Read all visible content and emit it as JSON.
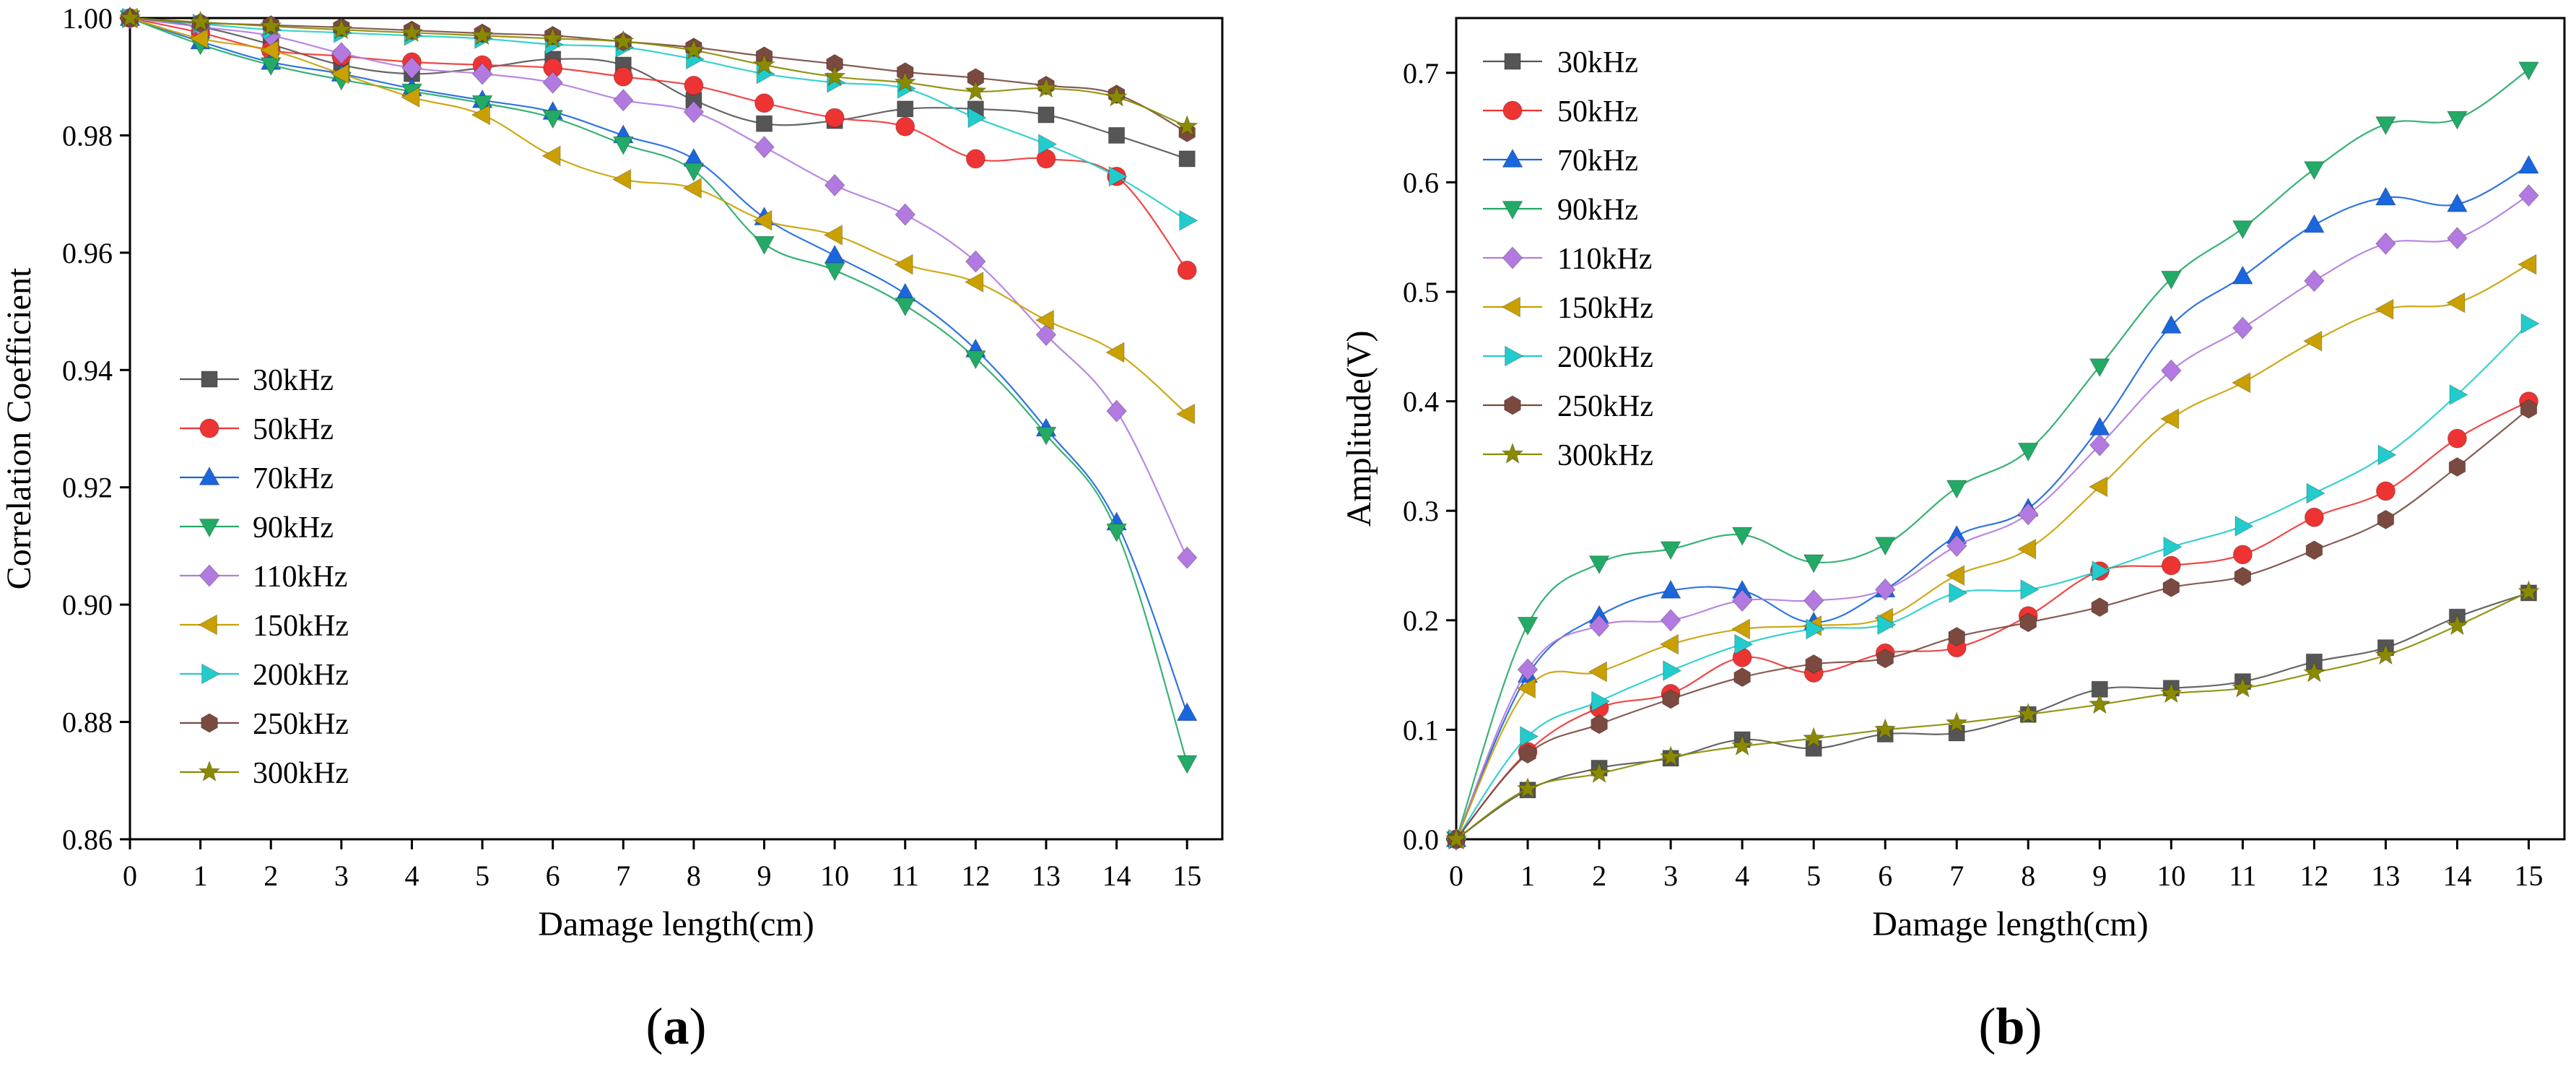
{
  "chart_data": [
    {
      "type": "line",
      "panel": "a",
      "panel_label": "a",
      "title": "",
      "xlabel": "Damage length(cm)",
      "ylabel": "Correlation Coefficient",
      "xlim": [
        0,
        15.5
      ],
      "ylim": [
        0.86,
        1.0
      ],
      "xticks": [
        0,
        1,
        2,
        3,
        4,
        5,
        6,
        7,
        8,
        9,
        10,
        11,
        12,
        13,
        14,
        15
      ],
      "yticks": [
        0.86,
        0.88,
        0.9,
        0.92,
        0.94,
        0.96,
        0.98,
        1.0
      ],
      "ytick_labels": [
        "0.86",
        "0.88",
        "0.90",
        "0.92",
        "0.94",
        "0.96",
        "0.98",
        "1.00"
      ],
      "grid": false,
      "legend_position": "center-left",
      "x": [
        0,
        1,
        2,
        3,
        4,
        5,
        6,
        7,
        8,
        9,
        10,
        11,
        12,
        13,
        14,
        15
      ],
      "series": [
        {
          "name": "30kHz",
          "color": "#555555",
          "marker": "square",
          "values": [
            1.0,
            0.9985,
            0.9955,
            0.992,
            0.9905,
            0.9915,
            0.993,
            0.992,
            0.986,
            0.982,
            0.9825,
            0.9845,
            0.9845,
            0.9835,
            0.98,
            0.976
          ]
        },
        {
          "name": "50kHz",
          "color": "#ee3333",
          "marker": "circle",
          "values": [
            1.0,
            0.9975,
            0.9945,
            0.9935,
            0.9925,
            0.992,
            0.9915,
            0.99,
            0.9885,
            0.9855,
            0.983,
            0.9815,
            0.976,
            0.976,
            0.973,
            0.957
          ]
        },
        {
          "name": "70kHz",
          "color": "#1a66dd",
          "marker": "triangle-up",
          "values": [
            1.0,
            0.996,
            0.9925,
            0.9905,
            0.988,
            0.986,
            0.984,
            0.98,
            0.976,
            0.966,
            0.9595,
            0.953,
            0.9435,
            0.93,
            0.914,
            0.8815
          ]
        },
        {
          "name": "90kHz",
          "color": "#22aa66",
          "marker": "triangle-down",
          "values": [
            1.0,
            0.9955,
            0.992,
            0.9895,
            0.9875,
            0.9855,
            0.983,
            0.9785,
            0.974,
            0.9615,
            0.957,
            0.951,
            0.942,
            0.929,
            0.9125,
            0.873
          ]
        },
        {
          "name": "110kHz",
          "color": "#b27ae0",
          "marker": "diamond",
          "values": [
            1.0,
            0.9985,
            0.997,
            0.994,
            0.9915,
            0.9905,
            0.989,
            0.986,
            0.984,
            0.978,
            0.9715,
            0.9665,
            0.9585,
            0.946,
            0.933,
            0.908
          ]
        },
        {
          "name": "150kHz",
          "color": "#c9a000",
          "marker": "triangle-left",
          "values": [
            1.0,
            0.9965,
            0.9945,
            0.9905,
            0.9865,
            0.9835,
            0.9765,
            0.9725,
            0.971,
            0.9655,
            0.963,
            0.958,
            0.955,
            0.9485,
            0.943,
            0.9325
          ]
        },
        {
          "name": "200kHz",
          "color": "#22cccc",
          "marker": "triangle-right",
          "values": [
            1.0,
            0.999,
            0.998,
            0.9975,
            0.997,
            0.9965,
            0.9955,
            0.995,
            0.993,
            0.9905,
            0.989,
            0.988,
            0.983,
            0.9785,
            0.973,
            0.9655
          ]
        },
        {
          "name": "250kHz",
          "color": "#7a4a40",
          "marker": "hexagon",
          "values": [
            1.0,
            0.9992,
            0.9988,
            0.9984,
            0.9979,
            0.9974,
            0.997,
            0.996,
            0.995,
            0.9935,
            0.9922,
            0.9908,
            0.9898,
            0.9885,
            0.987,
            0.9805
          ]
        },
        {
          "name": "300kHz",
          "color": "#8a8a00",
          "marker": "star",
          "values": [
            1.0,
            0.9993,
            0.9986,
            0.998,
            0.9975,
            0.997,
            0.9965,
            0.996,
            0.9945,
            0.992,
            0.99,
            0.989,
            0.9875,
            0.988,
            0.9865,
            0.9815
          ]
        }
      ]
    },
    {
      "type": "line",
      "panel": "b",
      "panel_label": "b",
      "title": "",
      "xlabel": "Damage length(cm)",
      "ylabel": "Amplitude(V)",
      "xlim": [
        0,
        15.5
      ],
      "ylim": [
        0.0,
        0.75
      ],
      "xticks": [
        0,
        1,
        2,
        3,
        4,
        5,
        6,
        7,
        8,
        9,
        10,
        11,
        12,
        13,
        14,
        15
      ],
      "yticks": [
        0.0,
        0.1,
        0.2,
        0.3,
        0.4,
        0.5,
        0.6,
        0.7
      ],
      "ytick_labels": [
        "0.0",
        "0.1",
        "0.2",
        "0.3",
        "0.4",
        "0.5",
        "0.6",
        "0.7"
      ],
      "grid": false,
      "legend_position": "top-left",
      "x": [
        0,
        1,
        2,
        3,
        4,
        5,
        6,
        7,
        8,
        9,
        10,
        11,
        12,
        13,
        14,
        15
      ],
      "series": [
        {
          "name": "30kHz",
          "color": "#555555",
          "marker": "square",
          "values": [
            0.0,
            0.045,
            0.065,
            0.074,
            0.091,
            0.083,
            0.096,
            0.097,
            0.114,
            0.137,
            0.138,
            0.144,
            0.162,
            0.175,
            0.203,
            0.225
          ]
        },
        {
          "name": "50kHz",
          "color": "#ee3333",
          "marker": "circle",
          "values": [
            0.0,
            0.08,
            0.12,
            0.133,
            0.166,
            0.152,
            0.17,
            0.175,
            0.204,
            0.245,
            0.25,
            0.26,
            0.294,
            0.318,
            0.366,
            0.4
          ]
        },
        {
          "name": "70kHz",
          "color": "#1a66dd",
          "marker": "triangle-up",
          "values": [
            0.0,
            0.15,
            0.204,
            0.227,
            0.227,
            0.198,
            0.228,
            0.277,
            0.302,
            0.376,
            0.469,
            0.514,
            0.561,
            0.586,
            0.58,
            0.615
          ]
        },
        {
          "name": "90kHz",
          "color": "#22aa66",
          "marker": "triangle-down",
          "values": [
            0.0,
            0.196,
            0.252,
            0.265,
            0.278,
            0.253,
            0.269,
            0.321,
            0.355,
            0.432,
            0.512,
            0.558,
            0.612,
            0.653,
            0.658,
            0.703
          ]
        },
        {
          "name": "110kHz",
          "color": "#b27ae0",
          "marker": "diamond",
          "values": [
            0.0,
            0.155,
            0.195,
            0.2,
            0.218,
            0.218,
            0.228,
            0.268,
            0.297,
            0.36,
            0.428,
            0.467,
            0.51,
            0.544,
            0.549,
            0.588
          ]
        },
        {
          "name": "150kHz",
          "color": "#c9a000",
          "marker": "triangle-left",
          "values": [
            0.0,
            0.138,
            0.153,
            0.178,
            0.192,
            0.195,
            0.202,
            0.241,
            0.265,
            0.322,
            0.384,
            0.417,
            0.455,
            0.484,
            0.49,
            0.525
          ]
        },
        {
          "name": "200kHz",
          "color": "#22cccc",
          "marker": "triangle-right",
          "values": [
            0.0,
            0.094,
            0.126,
            0.154,
            0.178,
            0.192,
            0.196,
            0.225,
            0.228,
            0.245,
            0.267,
            0.286,
            0.316,
            0.351,
            0.406,
            0.471
          ]
        },
        {
          "name": "250kHz",
          "color": "#7a4a40",
          "marker": "hexagon",
          "values": [
            0.0,
            0.078,
            0.105,
            0.128,
            0.148,
            0.16,
            0.165,
            0.185,
            0.198,
            0.212,
            0.23,
            0.24,
            0.264,
            0.292,
            0.34,
            0.393
          ]
        },
        {
          "name": "300kHz",
          "color": "#8a8a00",
          "marker": "star",
          "values": [
            0.0,
            0.046,
            0.06,
            0.075,
            0.085,
            0.092,
            0.1,
            0.106,
            0.114,
            0.123,
            0.133,
            0.138,
            0.152,
            0.168,
            0.195,
            0.226
          ]
        }
      ]
    }
  ]
}
